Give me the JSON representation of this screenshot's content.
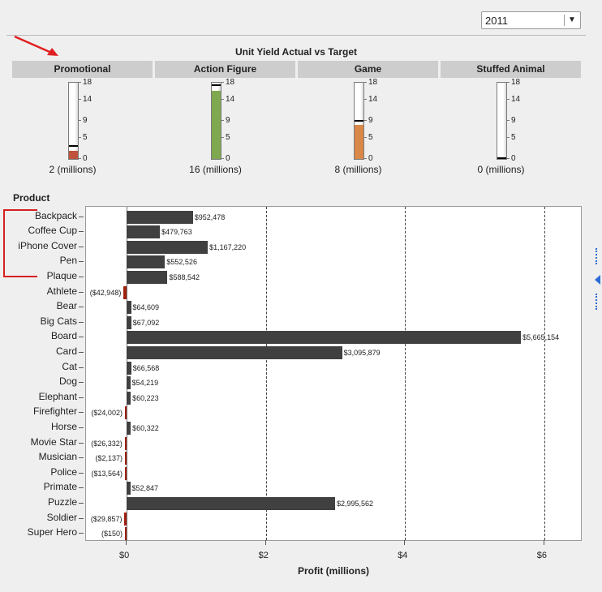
{
  "year_select": {
    "value": "2011"
  },
  "gauges": {
    "title": "Unit Yield Actual vs Target",
    "ticks": [
      "18",
      "14",
      "9",
      "5",
      "0"
    ],
    "max": 18,
    "items": [
      {
        "name": "Promotional",
        "actual": 2,
        "target": 3,
        "value_label": "2 (millions)",
        "fill_color": "#c0533c"
      },
      {
        "name": "Action Figure",
        "actual": 16,
        "target": 17.5,
        "value_label": "16 (millions)",
        "fill_color": "#7fa84f"
      },
      {
        "name": "Game",
        "actual": 8,
        "target": 9,
        "value_label": "8 (millions)",
        "fill_color": "#d9884a"
      },
      {
        "name": "Stuffed Animal",
        "actual": 0,
        "target": 0,
        "value_label": "0 (millions)",
        "fill_color": "#7fa84f"
      }
    ]
  },
  "chart_data": {
    "type": "bar",
    "orientation": "horizontal",
    "y_axis_title": "Product",
    "xlabel": "Profit (millions)",
    "xlim": [
      -0.3,
      6.3
    ],
    "x_ticks": [
      {
        "value": 0,
        "label": "$0"
      },
      {
        "value": 2,
        "label": "$2"
      },
      {
        "value": 4,
        "label": "$4"
      },
      {
        "value": 6,
        "label": "$6"
      }
    ],
    "grid": "dashed vertical at 2, 4, 6",
    "colors": {
      "positive": "#404040",
      "negative": "#a02010"
    },
    "bars": [
      {
        "category": "Backpack",
        "value": 952478,
        "label": "$952,478"
      },
      {
        "category": "Coffee Cup",
        "value": 479763,
        "label": "$479,763"
      },
      {
        "category": "iPhone Cover",
        "value": 1167220,
        "label": "$1,167,220"
      },
      {
        "category": "Pen",
        "value": 552526,
        "label": "$552,526"
      },
      {
        "category": "Plaque",
        "value": 588542,
        "label": "$588,542"
      },
      {
        "category": "Athlete",
        "value": -42948,
        "label": "($42,948)"
      },
      {
        "category": "Bear",
        "value": 64609,
        "label": "$64,609"
      },
      {
        "category": "Big Cats",
        "value": 67092,
        "label": "$67,092"
      },
      {
        "category": "Board",
        "value": 5665154,
        "label": "$5,665,154"
      },
      {
        "category": "Card",
        "value": 3095879,
        "label": "$3,095,879"
      },
      {
        "category": "Cat",
        "value": 66568,
        "label": "$66,568"
      },
      {
        "category": "Dog",
        "value": 54219,
        "label": "$54,219"
      },
      {
        "category": "Elephant",
        "value": 60223,
        "label": "$60,223"
      },
      {
        "category": "Firefighter",
        "value": -24002,
        "label": "($24,002)"
      },
      {
        "category": "Horse",
        "value": 60322,
        "label": "$60,322"
      },
      {
        "category": "Movie Star",
        "value": -26332,
        "label": "($26,332)"
      },
      {
        "category": "Musician",
        "value": -2137,
        "label": "($2,137)"
      },
      {
        "category": "Police",
        "value": -13564,
        "label": "($13,564)"
      },
      {
        "category": "Primate",
        "value": 52847,
        "label": "$52,847"
      },
      {
        "category": "Puzzle",
        "value": 2995562,
        "label": "$2,995,562"
      },
      {
        "category": "Soldier",
        "value": -29857,
        "label": "($29,857)"
      },
      {
        "category": "Super Hero",
        "value": -150,
        "label": "($150)"
      }
    ]
  }
}
